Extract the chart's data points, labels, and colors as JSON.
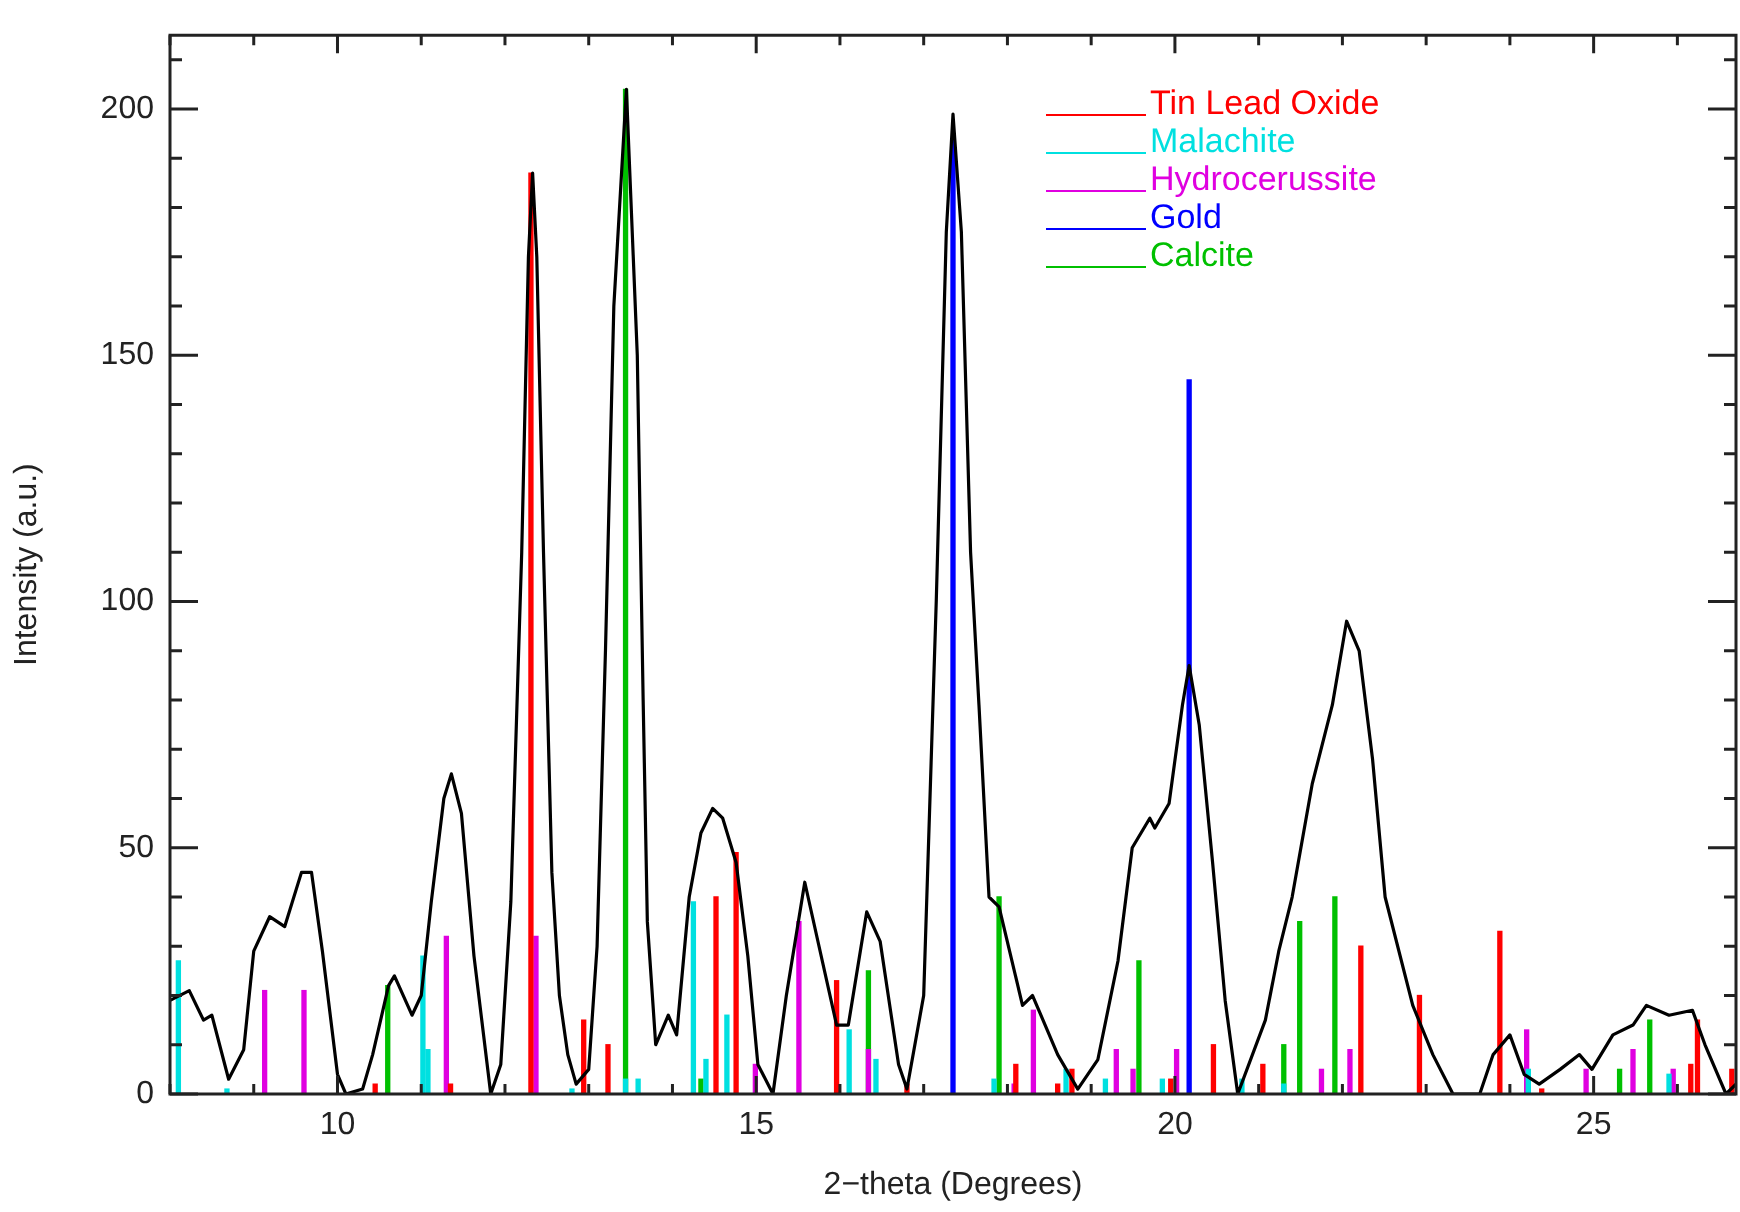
{
  "chart_data": {
    "type": "line",
    "xlabel": "2−theta (Degrees)",
    "ylabel": "Intensity (a.u.)",
    "xlim": [
      8,
      26.7
    ],
    "ylim": [
      0,
      215
    ],
    "xticks": [
      {
        "value": 8,
        "label": null
      },
      {
        "value": 9,
        "label": null
      },
      10,
      {
        "value": 11,
        "label": null
      },
      {
        "value": 12,
        "label": null
      },
      {
        "value": 13,
        "label": null
      },
      {
        "value": 14,
        "label": null
      },
      15,
      {
        "value": 16,
        "label": null
      },
      {
        "value": 17,
        "label": null
      },
      {
        "value": 18,
        "label": null
      },
      {
        "value": 19,
        "label": null
      },
      20,
      {
        "value": 21,
        "label": null
      },
      {
        "value": 22,
        "label": null
      },
      {
        "value": 23,
        "label": null
      },
      {
        "value": 24,
        "label": null
      },
      25,
      {
        "value": 26,
        "label": null
      }
    ],
    "yticks": [
      0,
      {
        "value": 10,
        "label": null
      },
      {
        "value": 20,
        "label": null
      },
      {
        "value": 30,
        "label": null
      },
      {
        "value": 40,
        "label": null
      },
      50,
      {
        "value": 60,
        "label": null
      },
      {
        "value": 70,
        "label": null
      },
      {
        "value": 80,
        "label": null
      },
      {
        "value": 90,
        "label": null
      },
      100,
      {
        "value": 110,
        "label": null
      },
      {
        "value": 120,
        "label": null
      },
      {
        "value": 130,
        "label": null
      },
      {
        "value": 140,
        "label": null
      },
      150,
      {
        "value": 160,
        "label": null
      },
      {
        "value": 170,
        "label": null
      },
      {
        "value": 180,
        "label": null
      },
      {
        "value": 190,
        "label": null
      },
      200,
      {
        "value": 210,
        "label": null
      }
    ],
    "legend": "top right",
    "marker": "none",
    "series": [
      {
        "color": "#000000",
        "x": [
          8.0,
          8.23,
          8.4,
          8.5,
          8.7,
          8.88,
          9.0,
          9.19,
          9.37,
          9.57,
          9.69,
          9.82,
          10.0,
          10.1,
          10.3,
          10.42,
          10.61,
          10.68,
          10.89,
          11.0,
          11.12,
          11.27,
          11.36,
          11.48,
          11.63,
          11.83,
          11.95,
          12.07,
          12.2,
          12.28,
          12.33,
          12.38,
          12.46,
          12.56,
          12.65,
          12.75,
          12.85,
          13.0,
          13.1,
          13.2,
          13.3,
          13.45,
          13.58,
          13.65,
          13.7,
          13.8,
          13.95,
          14.05,
          14.2,
          14.34,
          14.48,
          14.6,
          14.76,
          14.9,
          15.02,
          15.2,
          15.36,
          15.58,
          15.75,
          15.96,
          16.1,
          16.32,
          16.48,
          16.7,
          16.8,
          17.0,
          17.15,
          17.27,
          17.35,
          17.45,
          17.56,
          17.66,
          17.78,
          17.9,
          18.18,
          18.3,
          18.6,
          18.84,
          19.08,
          19.32,
          19.49,
          19.7,
          19.76,
          19.93,
          20.09,
          20.17,
          20.29,
          20.45,
          20.6,
          20.75,
          21.08,
          21.24,
          21.4,
          21.64,
          21.88,
          22.05,
          22.2,
          22.36,
          22.51,
          22.84,
          23.08,
          23.32,
          23.64,
          23.8,
          24.0,
          24.17,
          24.35,
          24.6,
          24.83,
          24.98,
          25.23,
          25.47,
          25.63,
          25.9,
          26.18,
          26.33,
          26.58,
          26.7
        ],
        "values": [
          19,
          21,
          15,
          16,
          3,
          9,
          29,
          36,
          34,
          45,
          45,
          29,
          4,
          0,
          1,
          8,
          22,
          24,
          16,
          20,
          39,
          60,
          65,
          57,
          28,
          0,
          6,
          39,
          110,
          170,
          187,
          170,
          110,
          45,
          20,
          8,
          2,
          5,
          30,
          90,
          160,
          204,
          150,
          80,
          35,
          10,
          16,
          12,
          40,
          53,
          58,
          56,
          47,
          28,
          6,
          0,
          20,
          43,
          30,
          14,
          14,
          37,
          31,
          6,
          1,
          20,
          100,
          175,
          199,
          175,
          110,
          79,
          40,
          38,
          18,
          20,
          8,
          1,
          7,
          27,
          50,
          56,
          54,
          59,
          79,
          87,
          75,
          47,
          19,
          0,
          15,
          29,
          40,
          63,
          79,
          96,
          90,
          68,
          40,
          18,
          8,
          0,
          0,
          8,
          12,
          4,
          2,
          5,
          8,
          5,
          12,
          14,
          18,
          16,
          17,
          10,
          0,
          2
        ]
      },
      {
        "name": "Tin Lead Oxide",
        "type": "bar",
        "color": "#ff0000",
        "x": [
          10.45,
          11.35,
          12.31,
          12.94,
          13.23,
          14.52,
          14.76,
          15.96,
          16.8,
          18.1,
          18.6,
          18.77,
          19.95,
          20.46,
          21.05,
          22.22,
          22.92,
          23.88,
          24.38,
          26.16,
          26.24,
          26.65
        ],
        "values": [
          2,
          2,
          187,
          15,
          10,
          40,
          49,
          23,
          2,
          6,
          2,
          5,
          3,
          10,
          6,
          30,
          20,
          33,
          1,
          6,
          15,
          5
        ]
      },
      {
        "name": "Malachite",
        "type": "bar",
        "color": "#00e0e0",
        "x": [
          8.1,
          8.68,
          11.02,
          11.08,
          12.8,
          13.44,
          13.59,
          14.25,
          14.4,
          14.65,
          16.11,
          16.43,
          17.84,
          18.7,
          19.17,
          19.85,
          20.8,
          21.3,
          24.22,
          25.9
        ],
        "values": [
          27,
          1,
          28,
          9,
          1,
          3,
          3,
          39,
          7,
          16,
          13,
          7,
          3,
          5,
          3,
          3,
          3,
          2,
          5,
          4
        ]
      },
      {
        "name": "Hydrocerussite",
        "type": "bar",
        "color": "#e000e0",
        "x": [
          9.13,
          9.6,
          11.3,
          12.37,
          14.99,
          15.51,
          16.34,
          18.08,
          18.31,
          19.3,
          19.5,
          20.02,
          21.75,
          22.09,
          24.2,
          24.91,
          25.47,
          25.95
        ],
        "values": [
          21,
          21,
          32,
          32,
          6,
          35,
          9,
          2,
          17,
          9,
          5,
          9,
          5,
          9,
          13,
          5,
          9,
          5
        ]
      },
      {
        "name": "Gold",
        "type": "bar",
        "color": "#0000ff",
        "x": [
          17.35,
          20.17
        ],
        "values": [
          194,
          145
        ]
      },
      {
        "name": "Calcite",
        "type": "bar",
        "color": "#00c000",
        "x": [
          10.6,
          13.44,
          14.34,
          16.34,
          17.9,
          19.57,
          21.3,
          21.49,
          21.91,
          25.31,
          25.67
        ],
        "values": [
          22,
          204,
          3,
          25,
          40,
          27,
          10,
          35,
          40,
          5,
          15
        ]
      }
    ]
  }
}
